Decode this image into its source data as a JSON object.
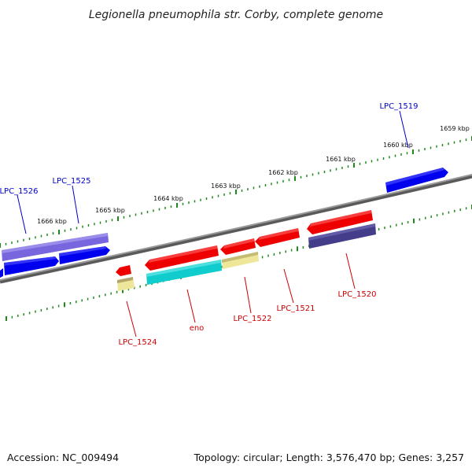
{
  "title": "Legionella pneumophila str. Corby, complete genome",
  "footer": {
    "accession": "Accession: NC_009494",
    "summary": "Topology: circular; Length: 3,576,470 bp; Genes: 3,257"
  },
  "kbp_labels": [
    "1659 kbp",
    "1660 kbp",
    "1661 kbp",
    "1662 kbp",
    "1663 kbp",
    "1664 kbp",
    "1665 kbp",
    "1666 kbp"
  ],
  "genes_forward": [
    "LPC_1519",
    "LPC_1525",
    "LPC_1526"
  ],
  "genes_reverse": [
    "LPC_1520",
    "LPC_1521",
    "LPC_1522",
    "eno",
    "LPC_1524"
  ],
  "colors": {
    "forward_label": "#0000cc",
    "reverse_label": "#cc0000",
    "blue_gene": "#0000ee",
    "violet_gene": "#7766dd",
    "navy_gene": "#443e8a",
    "red_gene": "#ee0000",
    "cyan_gene": "#11cccc",
    "yellow_gene": "#eee699",
    "backbone": "#888888",
    "ticks": "#1e8a1e"
  }
}
